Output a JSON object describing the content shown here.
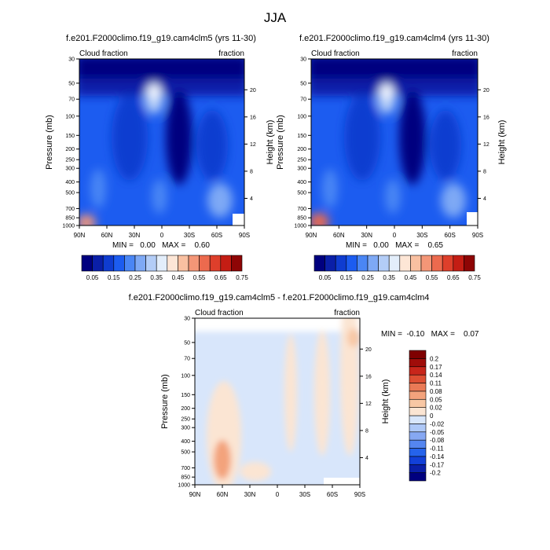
{
  "figure": {
    "title": "JJA",
    "panel_a_title": "f.e201.F2000climo.f19_g19.cam4clm5 (yrs 11-30)",
    "panel_b_title": "f.e201.F2000climo.f19_g19.cam4clm4 (yrs 11-30)",
    "panel_c_title": "f.e201.F2000climo.f19_g19.cam4clm5 - f.e201.F2000climo.f19_g19.cam4clm4"
  },
  "colors": {
    "abs_levels": [
      "#00007f",
      "#0a1fa8",
      "#0f3cd0",
      "#1c5cf0",
      "#4a86f5",
      "#7ea9f5",
      "#b3cdf7",
      "#e3eefb",
      "#fde6d6",
      "#f9c0a1",
      "#f49677",
      "#ec6a4e",
      "#de3f2b",
      "#c41d14",
      "#8e0505"
    ],
    "diff_levels": [
      "#00007f",
      "#0a1fa8",
      "#1240d8",
      "#2563eb",
      "#5586f0",
      "#86a8f3",
      "#aec8f7",
      "#d8e6fb",
      "#fbe5d3",
      "#f8c7a4",
      "#f3a37c",
      "#ea7a56",
      "#dd4f33",
      "#c8261b",
      "#a00d0a",
      "#7f0000"
    ]
  },
  "chart_data": [
    {
      "type": "heatmap",
      "title": "f.e201.F2000climo.f19_g19.cam4clm5 (yrs 11-30)",
      "left_label": "Cloud fraction",
      "right_label": "fraction",
      "ylabel": "Pressure (mb)",
      "ylabel_right": "Height (km)",
      "x_ticks": [
        "90N",
        "60N",
        "30N",
        "0",
        "30S",
        "60S",
        "90S"
      ],
      "y_ticks": [
        "30",
        "50",
        "70",
        "100",
        "150",
        "200",
        "250",
        "300",
        "400",
        "500",
        "700",
        "850",
        "1000"
      ],
      "y_right_ticks": [
        "20",
        "16",
        "12",
        "8",
        "4"
      ],
      "min_max_text": "MIN =   0.00   MAX =    0.60",
      "colorbar_labels": [
        "0.05",
        "0.15",
        "0.25",
        "0.35",
        "0.45",
        "0.55",
        "0.65",
        "0.75"
      ],
      "min": 0.0,
      "max": 0.6
    },
    {
      "type": "heatmap",
      "title": "f.e201.F2000climo.f19_g19.cam4clm4 (yrs 11-30)",
      "left_label": "Cloud fraction",
      "right_label": "fraction",
      "ylabel": "Pressure (mb)",
      "ylabel_right": "Height (km)",
      "x_ticks": [
        "90N",
        "60N",
        "30N",
        "0",
        "30S",
        "60S",
        "90S"
      ],
      "y_ticks": [
        "30",
        "50",
        "70",
        "100",
        "150",
        "200",
        "250",
        "300",
        "400",
        "500",
        "700",
        "850",
        "1000"
      ],
      "y_right_ticks": [
        "20",
        "16",
        "12",
        "8",
        "4"
      ],
      "min_max_text": "MIN =   0.00   MAX =    0.65",
      "colorbar_labels": [
        "0.05",
        "0.15",
        "0.25",
        "0.35",
        "0.45",
        "0.55",
        "0.65",
        "0.75"
      ],
      "min": 0.0,
      "max": 0.65
    },
    {
      "type": "heatmap",
      "title": "f.e201.F2000climo.f19_g19.cam4clm5 - f.e201.F2000climo.f19_g19.cam4clm4",
      "left_label": "Cloud fraction",
      "right_label": "fraction",
      "ylabel": "Pressure (mb)",
      "ylabel_right": "Height (km)",
      "x_ticks": [
        "90N",
        "60N",
        "30N",
        "0",
        "30S",
        "60S",
        "90S"
      ],
      "y_ticks": [
        "30",
        "50",
        "70",
        "100",
        "150",
        "200",
        "250",
        "300",
        "400",
        "500",
        "700",
        "850",
        "1000"
      ],
      "y_right_ticks": [
        "20",
        "16",
        "12",
        "8",
        "4"
      ],
      "min_max_text": "MIN =  -0.10   MAX =    0.07",
      "colorbar_labels": [
        "0.2",
        "0.17",
        "0.14",
        "0.11",
        "0.08",
        "0.05",
        "0.02",
        "0",
        "-0.02",
        "-0.05",
        "-0.08",
        "-0.11",
        "-0.14",
        "-0.17",
        "-0.2"
      ],
      "min": -0.1,
      "max": 0.07
    }
  ]
}
